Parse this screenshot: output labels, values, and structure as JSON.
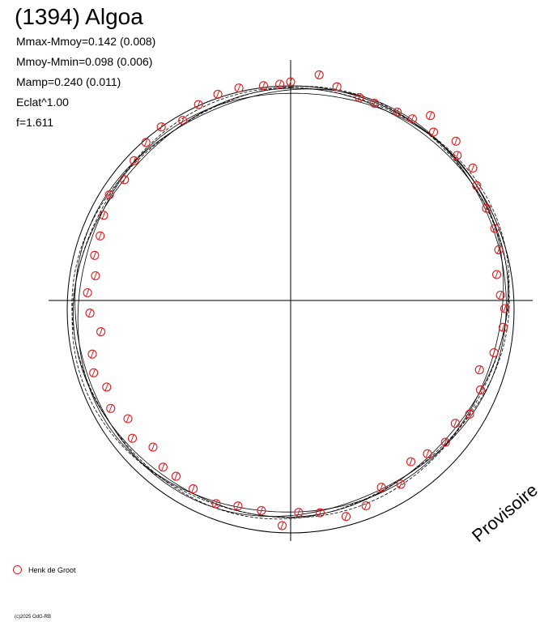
{
  "title": "(1394) Algoa",
  "stats": {
    "mmax_mmoy": "Mmax-Mmoy=0.142 (0.008)",
    "mmoy_mmin": "Mmoy-Mmin=0.098 (0.006)",
    "mamp": "Mamp=0.240 (0.011)",
    "eclat": "Eclat^1.00",
    "f": "f=1.611"
  },
  "watermark": "Provisoire",
  "legend": {
    "observer": "Henk de Groot"
  },
  "copyright": "(c)2025 OdG-RB",
  "colors": {
    "points": "#e31a1c",
    "axes": "#000000",
    "curve": "#000000"
  },
  "chart_data": {
    "type": "scatter",
    "coordinate_system": "polar",
    "note_phase": "angle = rotational phase (0-1), clockwise from top; radius relative to reference circle",
    "reference_circle_radius": 1.0,
    "series": [
      {
        "name": "Henk de Groot",
        "points": [
          {
            "phase": 0.0,
            "r": 1.0
          },
          {
            "phase": 0.02,
            "r": 1.04
          },
          {
            "phase": 0.034,
            "r": 1.0
          },
          {
            "phase": 0.052,
            "r": 0.98
          },
          {
            "phase": 0.064,
            "r": 0.98
          },
          {
            "phase": 0.082,
            "r": 0.99
          },
          {
            "phase": 0.094,
            "r": 1.0
          },
          {
            "phase": 0.103,
            "r": 1.06
          },
          {
            "phase": 0.112,
            "r": 1.01
          },
          {
            "phase": 0.128,
            "r": 1.05
          },
          {
            "phase": 0.136,
            "r": 1.01
          },
          {
            "phase": 0.15,
            "r": 1.03
          },
          {
            "phase": 0.162,
            "r": 1.0
          },
          {
            "phase": 0.18,
            "r": 0.99
          },
          {
            "phase": 0.196,
            "r": 0.99
          },
          {
            "phase": 0.212,
            "r": 0.98
          },
          {
            "phase": 0.23,
            "r": 0.95
          },
          {
            "phase": 0.246,
            "r": 0.96
          },
          {
            "phase": 0.256,
            "r": 0.98
          },
          {
            "phase": 0.27,
            "r": 0.98
          },
          {
            "phase": 0.29,
            "r": 0.96
          },
          {
            "phase": 0.306,
            "r": 0.92
          },
          {
            "phase": 0.32,
            "r": 0.96
          },
          {
            "phase": 0.34,
            "r": 0.97
          },
          {
            "phase": 0.352,
            "r": 0.94
          },
          {
            "phase": 0.368,
            "r": 0.96
          },
          {
            "phase": 0.384,
            "r": 0.94
          },
          {
            "phase": 0.398,
            "r": 0.92
          },
          {
            "phase": 0.414,
            "r": 0.98
          },
          {
            "phase": 0.428,
            "r": 0.95
          },
          {
            "phase": 0.444,
            "r": 1.0
          },
          {
            "phase": 0.46,
            "r": 1.02
          },
          {
            "phase": 0.478,
            "r": 0.98
          },
          {
            "phase": 0.494,
            "r": 0.97
          },
          {
            "phase": 0.506,
            "r": 1.03
          },
          {
            "phase": 0.522,
            "r": 0.97
          },
          {
            "phase": 0.54,
            "r": 0.97
          },
          {
            "phase": 0.556,
            "r": 0.99
          },
          {
            "phase": 0.576,
            "r": 0.97
          },
          {
            "phase": 0.592,
            "r": 0.96
          },
          {
            "phase": 0.604,
            "r": 0.96
          },
          {
            "phase": 0.62,
            "r": 0.92
          },
          {
            "phase": 0.636,
            "r": 0.96
          },
          {
            "phase": 0.65,
            "r": 0.92
          },
          {
            "phase": 0.664,
            "r": 0.96
          },
          {
            "phase": 0.68,
            "r": 0.93
          },
          {
            "phase": 0.694,
            "r": 0.96
          },
          {
            "phase": 0.708,
            "r": 0.94
          },
          {
            "phase": 0.724,
            "r": 0.88
          },
          {
            "phase": 0.74,
            "r": 0.92
          },
          {
            "phase": 0.756,
            "r": 0.93
          },
          {
            "phase": 0.77,
            "r": 0.9
          },
          {
            "phase": 0.786,
            "r": 0.92
          },
          {
            "phase": 0.802,
            "r": 0.92
          },
          {
            "phase": 0.818,
            "r": 0.94
          },
          {
            "phase": 0.834,
            "r": 0.96
          },
          {
            "phase": 0.85,
            "r": 0.94
          },
          {
            "phase": 0.866,
            "r": 0.96
          },
          {
            "phase": 0.882,
            "r": 0.98
          },
          {
            "phase": 0.898,
            "r": 0.99
          },
          {
            "phase": 0.914,
            "r": 0.96
          },
          {
            "phase": 0.93,
            "r": 0.99
          },
          {
            "phase": 0.946,
            "r": 1.0
          },
          {
            "phase": 0.962,
            "r": 1.0
          },
          {
            "phase": 0.98,
            "r": 0.99
          },
          {
            "phase": 0.992,
            "r": 0.99
          }
        ]
      }
    ],
    "fit_curve": {
      "harmonic_amplitude": 0.06,
      "harmonic_phase": 0.15,
      "offset_x": 0.0,
      "offset_y": -0.01
    },
    "grid": false
  }
}
